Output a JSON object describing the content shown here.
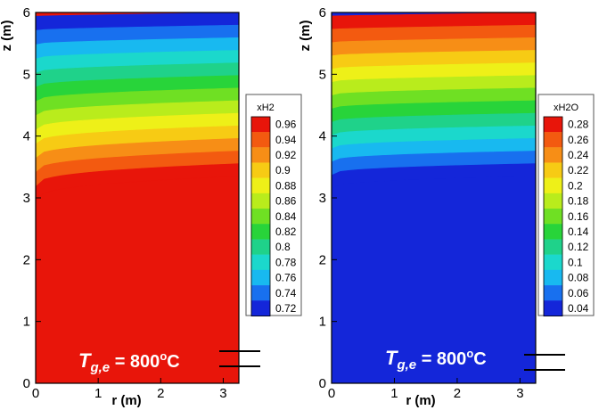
{
  "chart_data": [
    {
      "type": "heatmap",
      "variable": "xH2",
      "xlabel": "r (m)",
      "ylabel": "z (m)",
      "xlim": [
        0,
        3.25
      ],
      "ylim": [
        0,
        6
      ],
      "x_ticks": [
        "0",
        "1",
        "2",
        "3"
      ],
      "y_ticks": [
        "0",
        "1",
        "2",
        "3",
        "4",
        "5",
        "6"
      ],
      "legend": {
        "title": "xH2",
        "placement": "right",
        "levels": [
          "0.96",
          "0.94",
          "0.92",
          "0.9",
          "0.88",
          "0.86",
          "0.84",
          "0.82",
          "0.8",
          "0.78",
          "0.76",
          "0.74",
          "0.72"
        ],
        "colors": [
          "#e8150a",
          "#f35a10",
          "#f78e16",
          "#f7cb14",
          "#eef018",
          "#b9ec1c",
          "#6fe023",
          "#28d43a",
          "#1fd28a",
          "#1bd8cc",
          "#18b9f0",
          "#1870ef",
          "#1426d9"
        ]
      },
      "contour_top": [
        0.72,
        0.96
      ],
      "contour_bottom_value": 0.96,
      "front_z_at_axis": 2.95,
      "front_z_at_wall": 3.35,
      "annotation": {
        "symbol": "T",
        "subscript": "g,e",
        "equals": " = 800",
        "superscript": "o",
        "unit": "C"
      },
      "colors": {
        "background": "#e8150a"
      }
    },
    {
      "type": "heatmap",
      "variable": "xH2O",
      "xlabel": "r (m)",
      "ylabel": "z (m)",
      "xlim": [
        0,
        3.25
      ],
      "ylim": [
        0,
        6
      ],
      "x_ticks": [
        "0",
        "1",
        "2",
        "3"
      ],
      "y_ticks": [
        "0",
        "1",
        "2",
        "3",
        "4",
        "5",
        "6"
      ],
      "legend": {
        "title": "xH2O",
        "placement": "right",
        "levels": [
          "0.28",
          "0.26",
          "0.24",
          "0.22",
          "0.2",
          "0.18",
          "0.16",
          "0.14",
          "0.12",
          "0.1",
          "0.08",
          "0.06",
          "0.04"
        ],
        "colors": [
          "#e8150a",
          "#f35a10",
          "#f78e16",
          "#f7cb14",
          "#eef018",
          "#b9ec1c",
          "#6fe023",
          "#28d43a",
          "#1fd28a",
          "#1bd8cc",
          "#18b9f0",
          "#1870ef",
          "#1426d9"
        ]
      },
      "contour_top": [
        0.28,
        0.04
      ],
      "contour_bottom_value": 0.04,
      "front_z_at_axis": 3.15,
      "front_z_at_wall": 3.35,
      "annotation": {
        "symbol": "T",
        "subscript": "g,e",
        "equals": " = 800",
        "superscript": "o",
        "unit": "C"
      },
      "colors": {
        "background": "#1426d9"
      }
    }
  ]
}
